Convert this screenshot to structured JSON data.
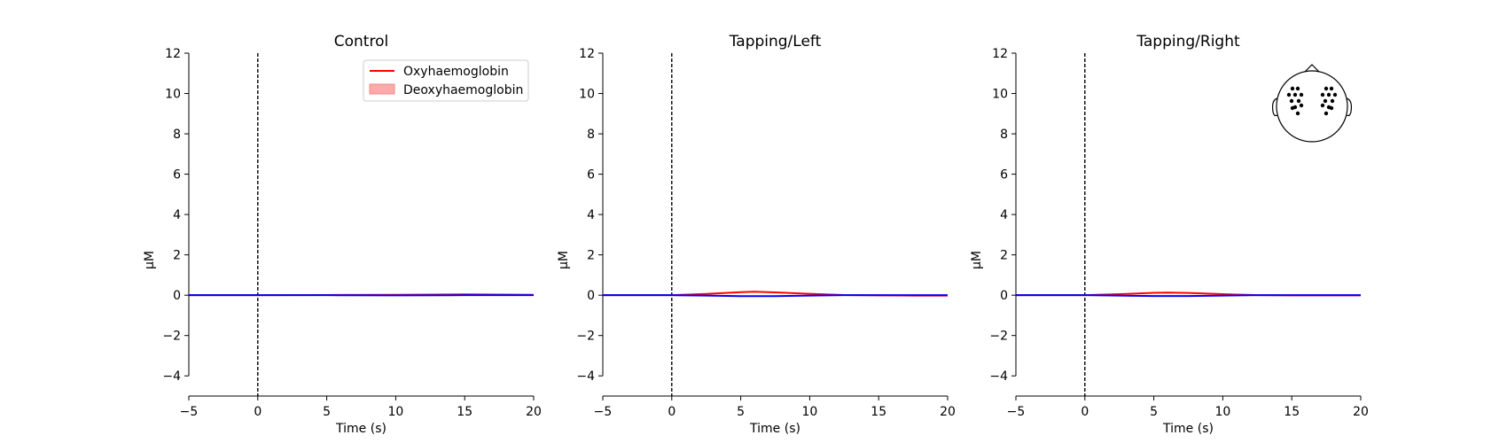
{
  "chart_data": [
    {
      "type": "line",
      "title": "Control",
      "xlabel": "Time (s)",
      "ylabel": "µM",
      "xlim": [
        -5,
        20
      ],
      "ylim": [
        -5,
        12
      ],
      "xticks": [
        -5,
        0,
        5,
        10,
        15,
        20
      ],
      "yticks": [
        -4,
        -2,
        0,
        2,
        4,
        6,
        8,
        10,
        12
      ],
      "grid": false,
      "vline_x": 0,
      "legend": {
        "position": "top-right",
        "entries": [
          "Oxyhaemoglobin",
          "Deoxyhaemoglobin"
        ]
      },
      "series": [
        {
          "name": "Oxyhaemoglobin",
          "color": "#ff0000",
          "x": [
            -5,
            0,
            5,
            10,
            15,
            20
          ],
          "y": [
            0.0,
            0.0,
            0.01,
            0.02,
            0.04,
            0.02
          ]
        },
        {
          "name": "Deoxyhaemoglobin",
          "color": "#0000ff",
          "x": [
            -5,
            0,
            5,
            10,
            15,
            20
          ],
          "y": [
            0.0,
            0.0,
            0.0,
            -0.01,
            0.0,
            0.0
          ]
        }
      ]
    },
    {
      "type": "line",
      "title": "Tapping/Left",
      "xlabel": "Time (s)",
      "ylabel": "µM",
      "xlim": [
        -5,
        20
      ],
      "ylim": [
        -5,
        12
      ],
      "xticks": [
        -5,
        0,
        5,
        10,
        15,
        20
      ],
      "yticks": [
        -4,
        -2,
        0,
        2,
        4,
        6,
        8,
        10,
        12
      ],
      "grid": false,
      "vline_x": 0,
      "series": [
        {
          "name": "Oxyhaemoglobin",
          "color": "#ff0000",
          "x": [
            -5,
            -2.5,
            0,
            2.5,
            5,
            6,
            7.5,
            10,
            12.5,
            15,
            17.5,
            20
          ],
          "y": [
            0.0,
            0.0,
            0.0,
            0.06,
            0.15,
            0.17,
            0.14,
            0.07,
            0.01,
            -0.01,
            -0.02,
            -0.02
          ]
        },
        {
          "name": "Deoxyhaemoglobin",
          "color": "#0000ff",
          "x": [
            -5,
            -2.5,
            0,
            2.5,
            5,
            7.5,
            10,
            12.5,
            15,
            17.5,
            20
          ],
          "y": [
            0.0,
            0.0,
            0.0,
            -0.02,
            -0.05,
            -0.05,
            -0.02,
            0.0,
            0.0,
            0.0,
            0.0
          ]
        }
      ]
    },
    {
      "type": "line",
      "title": "Tapping/Right",
      "xlabel": "Time (s)",
      "ylabel": "µM",
      "xlim": [
        -5,
        20
      ],
      "ylim": [
        -5,
        12
      ],
      "xticks": [
        -5,
        0,
        5,
        10,
        15,
        20
      ],
      "yticks": [
        -4,
        -2,
        0,
        2,
        4,
        6,
        8,
        10,
        12
      ],
      "grid": false,
      "vline_x": 0,
      "series": [
        {
          "name": "Oxyhaemoglobin",
          "color": "#ff0000",
          "x": [
            -5,
            -2.5,
            0,
            2.5,
            5,
            6,
            7.5,
            10,
            12.5,
            15,
            17.5,
            20
          ],
          "y": [
            0.0,
            0.0,
            0.0,
            0.05,
            0.12,
            0.13,
            0.11,
            0.05,
            0.0,
            -0.01,
            -0.01,
            -0.01
          ]
        },
        {
          "name": "Deoxyhaemoglobin",
          "color": "#0000ff",
          "x": [
            -5,
            -2.5,
            0,
            2.5,
            5,
            7.5,
            10,
            12.5,
            15,
            17.5,
            20
          ],
          "y": [
            0.0,
            0.0,
            0.0,
            -0.02,
            -0.04,
            -0.04,
            -0.02,
            0.0,
            0.0,
            0.0,
            0.0
          ]
        }
      ],
      "sensor_inset": {
        "position": "top-right",
        "icon": "head-sensor-map-icon"
      }
    }
  ]
}
